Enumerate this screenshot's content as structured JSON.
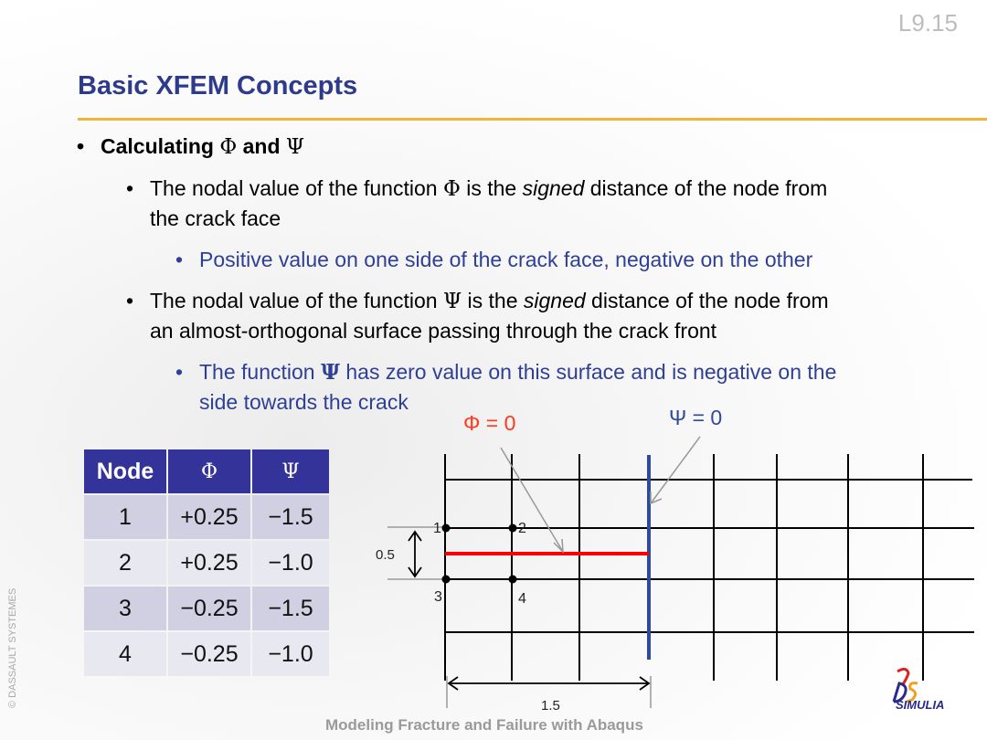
{
  "slide_number": "L9.15",
  "title": "Basic XFEM Concepts",
  "bullets": {
    "main": {
      "prefix": "Calculating ",
      "phi": "Φ",
      "and": " and ",
      "psi": "Ψ"
    },
    "phi_def": {
      "a": "The nodal value of the function ",
      "sym": "Φ",
      "b": " is the ",
      "em": "signed",
      "c": " distance of the node from",
      "d": "the crack face"
    },
    "phi_sub": "Positive value on one side of the crack face, negative on the other",
    "psi_def": {
      "a": "The nodal value of the function ",
      "sym": "Ψ",
      "b": " is the ",
      "em": "signed",
      "c": " distance of the node from",
      "d": "an almost-orthogonal surface passing through the crack front"
    },
    "psi_sub": {
      "a": "The function ",
      "sym": "Ψ",
      "b": " has zero value on this surface and is negative on the",
      "c": "side towards the crack"
    }
  },
  "table": {
    "headers": [
      "Node",
      "Φ",
      "Ψ"
    ],
    "rows": [
      [
        "1",
        "+0.25",
        "−1.5"
      ],
      [
        "2",
        "+0.25",
        "−1.0"
      ],
      [
        "3",
        "−0.25",
        "−1.5"
      ],
      [
        "4",
        "−0.25",
        "−1.0"
      ]
    ]
  },
  "diagram": {
    "phi_label": "Φ = 0",
    "psi_label": "Ψ = 0",
    "node_labels": [
      "1",
      "2",
      "3",
      "4"
    ],
    "dim_vertical": "0.5",
    "dim_horizontal": "1.5",
    "colors": {
      "crack": "#ff0000",
      "psi_line": "#2e4a9a",
      "phi_label": "#ff3a1a",
      "psi_label": "#2e4a9a"
    }
  },
  "footer": "Modeling Fracture and Failure with Abaqus",
  "copyright": "© DASSAULT SYSTEMES",
  "logo_text": "SIMULIA"
}
